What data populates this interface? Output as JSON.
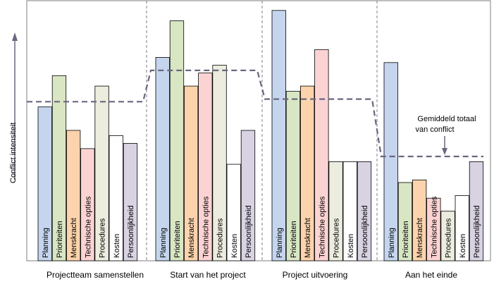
{
  "chart_data": {
    "type": "bar",
    "ylabel": "Conflict intensiteit",
    "phases": [
      "Projectteam samenstellen",
      "Start van het project",
      "Project uitvoering",
      "Aan het einde"
    ],
    "series": [
      {
        "name": "Planning",
        "color": "#c5d5ee",
        "values": [
          59,
          78,
          96,
          76
        ]
      },
      {
        "name": "Prioriteiten",
        "color": "#d9e6c4",
        "values": [
          71,
          92,
          65,
          30
        ]
      },
      {
        "name": "Menskracht",
        "color": "#fcd3ac",
        "values": [
          50,
          67,
          67,
          31
        ]
      },
      {
        "name": "Technische opties",
        "color": "#fcd3d3",
        "values": [
          43,
          72,
          81,
          24
        ]
      },
      {
        "name": "Procedures",
        "color": "#ececdf",
        "values": [
          67,
          75,
          38,
          19
        ]
      },
      {
        "name": "Kosten",
        "color": "#ffffff",
        "values": [
          48,
          37,
          38,
          25
        ]
      },
      {
        "name": "Persoonlijkheid",
        "color": "#d8d2e2",
        "values": [
          45,
          50,
          38,
          38
        ]
      }
    ],
    "average_line": {
      "name": "Gemiddeld totaal van conflict",
      "values": [
        61,
        73,
        62,
        40
      ]
    },
    "annotation": "Gemiddeld totaal\nvan conflict",
    "ylim": [
      0,
      100
    ],
    "colors": {
      "border": "#7f7f7f",
      "divider": "#7f7f7f",
      "average_line": "#6b6680",
      "arrow": "#6b6680"
    }
  }
}
